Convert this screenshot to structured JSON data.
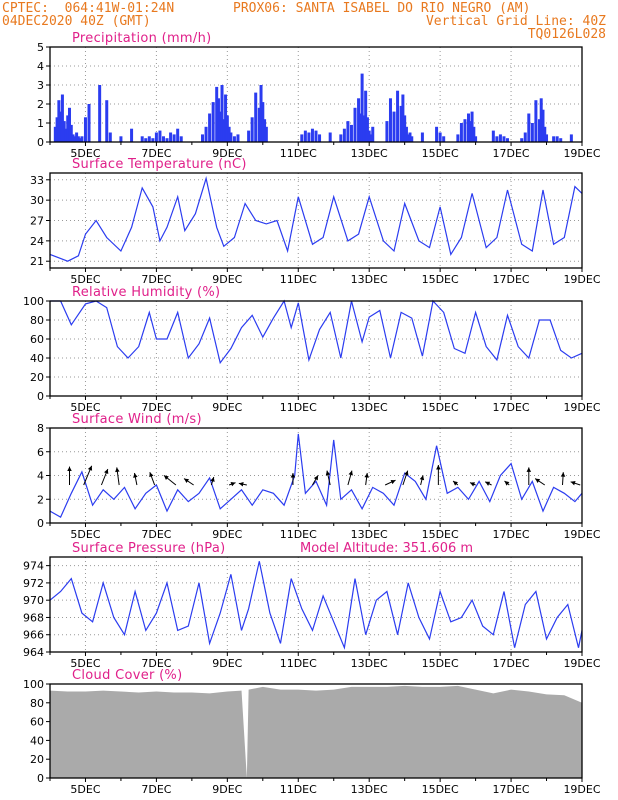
{
  "header": {
    "line1_left": "CPTEC:  064:41W-01:24N",
    "line1_right": "PROX06: SANTA ISABEL DO RIO NEGRO (AM)",
    "line2_left": "04DEC2020 40Z (GMT)",
    "line2_right": "Vertical Grid Line: 40Z",
    "line3_right": "TQ0126L028"
  },
  "colors": {
    "header": "#e8791f",
    "title": "#e0208a",
    "precip_bar": "#2b3cf0",
    "line": "#2b3cf0",
    "cloud": "#aaaaaa",
    "wind_vector": "#000000",
    "grid": "#999999"
  },
  "x_axis": {
    "tick_labels": [
      "5DEC",
      "7DEC",
      "9DEC",
      "11DEC",
      "13DEC",
      "15DEC",
      "17DEC",
      "19DEC"
    ],
    "tick_days": [
      5,
      7,
      9,
      11,
      13,
      15,
      17,
      19
    ],
    "range_days": [
      4.0,
      19.0
    ]
  },
  "chart_data": [
    {
      "type": "bar",
      "title": "Precipitation (mm/h)",
      "ylim": [
        0,
        5
      ],
      "yticks": [
        0,
        1,
        2,
        3,
        4,
        5
      ],
      "grid": true,
      "x": [
        4.15,
        4.2,
        4.25,
        4.3,
        4.35,
        4.4,
        4.45,
        4.5,
        4.55,
        4.6,
        4.65,
        4.7,
        4.75,
        4.8,
        4.85,
        4.9,
        5.0,
        5.1,
        5.4,
        5.6,
        5.7,
        6.0,
        6.3,
        6.6,
        6.7,
        6.8,
        6.9,
        7.0,
        7.1,
        7.2,
        7.3,
        7.4,
        7.5,
        7.6,
        7.7,
        8.3,
        8.4,
        8.5,
        8.6,
        8.7,
        8.75,
        8.8,
        8.85,
        8.9,
        8.95,
        9.0,
        9.05,
        9.1,
        9.2,
        9.3,
        9.6,
        9.7,
        9.8,
        9.9,
        9.95,
        10.0,
        10.05,
        10.1,
        11.1,
        11.2,
        11.3,
        11.4,
        11.5,
        11.6,
        11.9,
        12.2,
        12.3,
        12.4,
        12.5,
        12.6,
        12.7,
        12.75,
        12.8,
        12.85,
        12.9,
        12.95,
        13.0,
        13.05,
        13.1,
        13.5,
        13.6,
        13.7,
        13.8,
        13.9,
        13.95,
        14.0,
        14.05,
        14.1,
        14.15,
        14.2,
        14.5,
        14.9,
        15.0,
        15.1,
        15.5,
        15.6,
        15.7,
        15.8,
        15.85,
        15.9,
        15.95,
        16.0,
        16.5,
        16.6,
        16.7,
        16.8,
        16.9,
        17.3,
        17.4,
        17.5,
        17.6,
        17.7,
        17.8,
        17.85,
        17.9,
        17.95,
        18.0,
        18.2,
        18.3,
        18.4,
        18.7
      ],
      "values": [
        0.8,
        1.3,
        2.2,
        1.6,
        2.5,
        1.1,
        0.7,
        1.4,
        1.8,
        0.9,
        0.4,
        0.3,
        0.5,
        0.3,
        0.2,
        0.3,
        1.3,
        2.0,
        3.0,
        2.2,
        0.5,
        0.3,
        0.7,
        0.3,
        0.2,
        0.3,
        0.2,
        0.5,
        0.6,
        0.3,
        0.2,
        0.5,
        0.4,
        0.7,
        0.3,
        0.4,
        0.8,
        1.5,
        2.1,
        2.9,
        2.3,
        1.6,
        3.0,
        1.2,
        2.5,
        1.4,
        0.8,
        0.5,
        0.3,
        0.4,
        0.6,
        1.3,
        2.6,
        1.8,
        3.0,
        2.1,
        1.2,
        0.8,
        0.4,
        0.6,
        0.5,
        0.7,
        0.6,
        0.4,
        0.5,
        0.4,
        0.7,
        1.1,
        0.9,
        1.8,
        2.3,
        1.5,
        3.6,
        1.4,
        2.7,
        1.3,
        0.6,
        0.4,
        0.8,
        1.1,
        2.3,
        1.6,
        2.7,
        1.9,
        2.5,
        1.4,
        0.8,
        0.4,
        0.5,
        0.3,
        0.5,
        0.8,
        0.5,
        0.3,
        0.4,
        1.0,
        1.2,
        1.5,
        1.1,
        1.6,
        0.8,
        0.3,
        0.6,
        0.3,
        0.4,
        0.3,
        0.2,
        0.2,
        0.5,
        1.5,
        1.0,
        2.2,
        1.2,
        2.3,
        1.7,
        0.8,
        0.4,
        0.3,
        0.3,
        0.2,
        0.4
      ]
    },
    {
      "type": "line",
      "title": "Surface Temperature (nC)",
      "ylim": [
        20,
        34
      ],
      "yticks": [
        21,
        24,
        27,
        30,
        33
      ],
      "grid": true,
      "x": [
        4.0,
        4.5,
        4.8,
        5.0,
        5.3,
        5.6,
        6.0,
        6.3,
        6.6,
        6.9,
        7.1,
        7.3,
        7.6,
        7.8,
        8.1,
        8.4,
        8.7,
        8.9,
        9.2,
        9.5,
        9.8,
        10.1,
        10.4,
        10.7,
        11.0,
        11.4,
        11.7,
        12.0,
        12.4,
        12.7,
        13.0,
        13.4,
        13.7,
        14.0,
        14.4,
        14.7,
        15.0,
        15.3,
        15.6,
        15.9,
        16.3,
        16.6,
        16.9,
        17.3,
        17.6,
        17.9,
        18.2,
        18.5,
        18.8,
        19.0
      ],
      "values": [
        22.0,
        21.0,
        21.8,
        25.0,
        27.0,
        24.5,
        22.5,
        26.0,
        31.8,
        29.0,
        24.0,
        26.0,
        30.5,
        25.5,
        28.0,
        33.2,
        26.0,
        23.2,
        24.5,
        29.5,
        27.0,
        26.5,
        27.0,
        22.5,
        30.5,
        23.5,
        24.5,
        30.5,
        24.0,
        25.0,
        30.5,
        24.0,
        22.5,
        29.5,
        24.0,
        23.0,
        29.0,
        22.0,
        24.5,
        31.0,
        23.0,
        24.5,
        31.5,
        23.5,
        22.5,
        31.5,
        23.5,
        24.5,
        32.0,
        31.0
      ]
    },
    {
      "type": "line",
      "title": "Relative Humidity (%)",
      "ylim": [
        0,
        100
      ],
      "yticks": [
        0,
        20,
        40,
        60,
        80,
        100
      ],
      "grid": true,
      "x": [
        4.0,
        4.3,
        4.6,
        5.0,
        5.3,
        5.6,
        5.9,
        6.2,
        6.5,
        6.8,
        7.0,
        7.3,
        7.6,
        7.9,
        8.2,
        8.5,
        8.8,
        9.1,
        9.4,
        9.7,
        10.0,
        10.3,
        10.6,
        10.8,
        11.0,
        11.3,
        11.6,
        11.9,
        12.2,
        12.5,
        12.8,
        13.0,
        13.3,
        13.6,
        13.9,
        14.2,
        14.5,
        14.8,
        15.1,
        15.4,
        15.7,
        16.0,
        16.3,
        16.6,
        16.9,
        17.2,
        17.5,
        17.8,
        18.1,
        18.4,
        18.7,
        19.0
      ],
      "values": [
        100,
        100,
        75,
        97,
        100,
        93,
        52,
        40,
        52,
        88,
        60,
        60,
        88,
        40,
        55,
        82,
        35,
        50,
        72,
        85,
        62,
        82,
        100,
        72,
        98,
        38,
        70,
        88,
        40,
        100,
        57,
        83,
        90,
        40,
        88,
        82,
        42,
        100,
        88,
        50,
        45,
        88,
        52,
        38,
        85,
        52,
        40,
        80,
        80,
        48,
        40,
        45
      ]
    },
    {
      "type": "line",
      "title": "Surface Wind (m/s)",
      "ylim": [
        0,
        8
      ],
      "yticks": [
        0,
        2,
        4,
        6,
        8
      ],
      "grid": true,
      "x": [
        4.0,
        4.3,
        4.6,
        4.9,
        5.2,
        5.5,
        5.8,
        6.1,
        6.4,
        6.7,
        7.0,
        7.3,
        7.6,
        7.9,
        8.2,
        8.5,
        8.8,
        9.1,
        9.4,
        9.7,
        10.0,
        10.3,
        10.6,
        10.9,
        11.0,
        11.2,
        11.5,
        11.8,
        12.0,
        12.2,
        12.5,
        12.8,
        13.1,
        13.4,
        13.7,
        14.0,
        14.3,
        14.6,
        14.9,
        15.2,
        15.5,
        15.8,
        16.1,
        16.4,
        16.7,
        17.0,
        17.3,
        17.6,
        17.9,
        18.2,
        18.5,
        18.8,
        19.0
      ],
      "values": [
        1.0,
        0.5,
        2.5,
        4.3,
        1.5,
        2.8,
        2.0,
        3.0,
        1.2,
        2.5,
        3.2,
        1.0,
        2.8,
        1.8,
        2.5,
        3.8,
        1.2,
        2.0,
        2.8,
        1.5,
        2.8,
        2.5,
        1.5,
        4.0,
        7.5,
        2.5,
        3.5,
        1.5,
        7.0,
        2.0,
        2.8,
        1.2,
        3.0,
        2.5,
        1.5,
        4.2,
        3.5,
        2.0,
        6.5,
        2.5,
        3.0,
        2.0,
        3.5,
        1.8,
        4.0,
        5.0,
        2.0,
        3.5,
        1.0,
        3.0,
        2.5,
        1.8,
        2.5
      ],
      "vectors": [
        {
          "x": 4.55,
          "v": 2.3,
          "u": 0.0
        },
        {
          "x": 4.95,
          "v": 2.4,
          "u": 1.0
        },
        {
          "x": 5.45,
          "v": 2.0,
          "u": 0.8
        },
        {
          "x": 5.95,
          "v": 2.2,
          "u": -0.3
        },
        {
          "x": 6.45,
          "v": 1.5,
          "u": -0.3
        },
        {
          "x": 6.95,
          "v": 1.6,
          "u": -0.6
        },
        {
          "x": 7.55,
          "v": 1.2,
          "u": -1.5
        },
        {
          "x": 8.05,
          "v": 0.8,
          "u": -1.2
        },
        {
          "x": 8.55,
          "v": 1.0,
          "u": 0.3
        },
        {
          "x": 9.05,
          "v": 0.3,
          "u": 0.8
        },
        {
          "x": 9.55,
          "v": 0.2,
          "u": -1.0
        },
        {
          "x": 10.85,
          "v": 1.5,
          "u": 0.0
        },
        {
          "x": 11.4,
          "v": 1.2,
          "u": 0.7
        },
        {
          "x": 11.9,
          "v": 1.8,
          "u": -0.4
        },
        {
          "x": 12.4,
          "v": 1.8,
          "u": 0.5
        },
        {
          "x": 12.9,
          "v": 1.5,
          "u": 0.2
        },
        {
          "x": 13.45,
          "v": 0.6,
          "u": 1.3
        },
        {
          "x": 13.95,
          "v": 1.8,
          "u": 0.6
        },
        {
          "x": 14.45,
          "v": 1.2,
          "u": 0.3
        },
        {
          "x": 14.95,
          "v": 2.5,
          "u": 0.0
        },
        {
          "x": 15.5,
          "v": 0.5,
          "u": -0.6
        },
        {
          "x": 16.0,
          "v": 0.3,
          "u": -0.7
        },
        {
          "x": 16.45,
          "v": 0.4,
          "u": -0.8
        },
        {
          "x": 16.95,
          "v": 0.5,
          "u": -0.6
        },
        {
          "x": 17.5,
          "v": 2.2,
          "u": 0.0
        },
        {
          "x": 17.95,
          "v": 0.8,
          "u": -1.2
        },
        {
          "x": 18.45,
          "v": 1.6,
          "u": 0.1
        },
        {
          "x": 18.95,
          "v": 0.4,
          "u": -1.2
        }
      ]
    },
    {
      "type": "line",
      "title": "Surface Pressure (hPa)",
      "annotation": "Model Altitude: 351.606 m",
      "ylim": [
        964,
        975
      ],
      "yticks": [
        964,
        966,
        968,
        970,
        972,
        974
      ],
      "grid": true,
      "x": [
        4.0,
        4.3,
        4.6,
        4.9,
        5.2,
        5.5,
        5.8,
        6.1,
        6.4,
        6.7,
        7.0,
        7.3,
        7.6,
        7.9,
        8.2,
        8.5,
        8.8,
        9.1,
        9.4,
        9.6,
        9.9,
        10.2,
        10.5,
        10.8,
        11.1,
        11.4,
        11.7,
        12.0,
        12.3,
        12.6,
        12.9,
        13.2,
        13.5,
        13.8,
        14.1,
        14.4,
        14.7,
        15.0,
        15.3,
        15.6,
        15.9,
        16.2,
        16.5,
        16.8,
        17.1,
        17.4,
        17.7,
        18.0,
        18.3,
        18.6,
        18.9,
        19.0
      ],
      "values": [
        970.0,
        971.0,
        972.5,
        968.5,
        967.5,
        972.0,
        968.0,
        966.0,
        971.0,
        966.5,
        968.5,
        972.0,
        966.5,
        967.0,
        972.0,
        965.0,
        968.5,
        973.0,
        966.5,
        969.0,
        974.5,
        968.5,
        965.0,
        972.5,
        969.0,
        966.5,
        970.5,
        967.5,
        964.5,
        972.5,
        966.0,
        970.0,
        971.0,
        966.0,
        972.0,
        968.0,
        965.5,
        971.0,
        967.5,
        968.0,
        970.0,
        967.0,
        966.0,
        971.0,
        964.5,
        969.5,
        971.0,
        965.5,
        968.0,
        969.5,
        964.5,
        966.5
      ]
    },
    {
      "type": "area",
      "title": "Cloud Cover (%)",
      "ylim": [
        0,
        100
      ],
      "yticks": [
        0,
        20,
        40,
        60,
        80,
        100
      ],
      "grid": false,
      "x": [
        4.0,
        4.5,
        5.0,
        5.5,
        6.0,
        6.5,
        7.0,
        7.5,
        8.0,
        8.5,
        9.0,
        9.4,
        9.55,
        9.6,
        10.0,
        10.5,
        11.0,
        11.5,
        12.0,
        12.5,
        13.0,
        13.5,
        14.0,
        14.5,
        15.0,
        15.5,
        16.0,
        16.5,
        17.0,
        17.5,
        18.0,
        18.5,
        19.0
      ],
      "values": [
        93,
        92,
        92,
        93,
        92,
        91,
        92,
        91,
        91,
        90,
        92,
        93,
        0,
        94,
        97,
        94,
        94,
        93,
        94,
        97,
        97,
        97,
        98,
        97,
        97,
        98,
        94,
        90,
        94,
        92,
        89,
        88,
        80
      ]
    }
  ]
}
